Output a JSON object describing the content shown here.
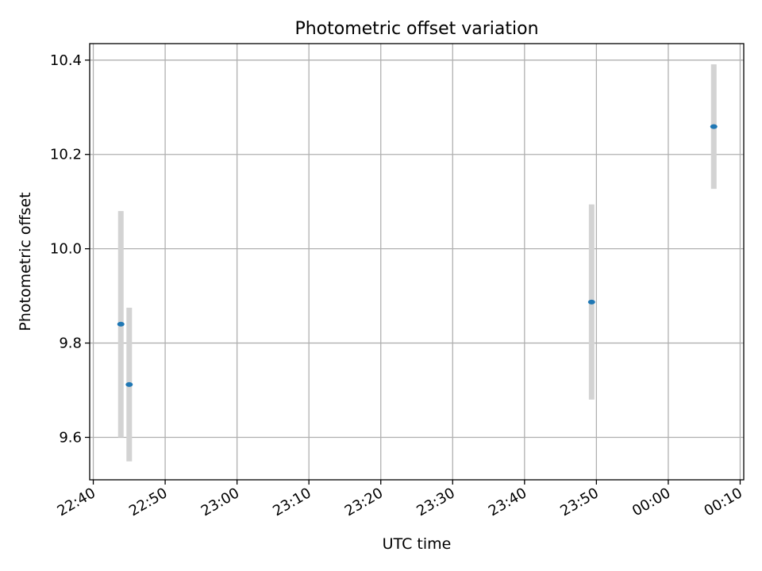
{
  "chart_data": {
    "type": "scatter",
    "title": "Photometric offset variation",
    "xlabel": "UTC time",
    "ylabel": "Photometric offset",
    "grid": true,
    "x_ticks": [
      {
        "label": "22:40",
        "minutes": 0
      },
      {
        "label": "22:50",
        "minutes": 10
      },
      {
        "label": "23:00",
        "minutes": 20
      },
      {
        "label": "23:10",
        "minutes": 30
      },
      {
        "label": "23:20",
        "minutes": 40
      },
      {
        "label": "23:30",
        "minutes": 50
      },
      {
        "label": "23:40",
        "minutes": 60
      },
      {
        "label": "23:50",
        "minutes": 70
      },
      {
        "label": "00:00",
        "minutes": 80
      },
      {
        "label": "00:10",
        "minutes": 90
      }
    ],
    "xlim": [
      "22:39:30",
      "00:10:30"
    ],
    "ylim": [
      9.51,
      10.435
    ],
    "y_ticks": [
      {
        "label": "9.6",
        "value": 9.6
      },
      {
        "label": "9.8",
        "value": 9.8
      },
      {
        "label": "10.0",
        "value": 10.0
      },
      {
        "label": "10.2",
        "value": 10.2
      },
      {
        "label": "10.4",
        "value": 10.4
      }
    ],
    "points": [
      {
        "x": "22:43:50",
        "y": 9.84,
        "err": 0.24
      },
      {
        "x": "22:45:00",
        "y": 9.712,
        "err": 0.163
      },
      {
        "x": "23:49:20",
        "y": 9.887,
        "err": 0.207
      },
      {
        "x": "00:06:20",
        "y": 10.259,
        "err": 0.132
      }
    ],
    "colors": {
      "marker": "#1f77b4",
      "errorbar": "#d3d3d3",
      "grid": "#b0b0b0"
    }
  }
}
